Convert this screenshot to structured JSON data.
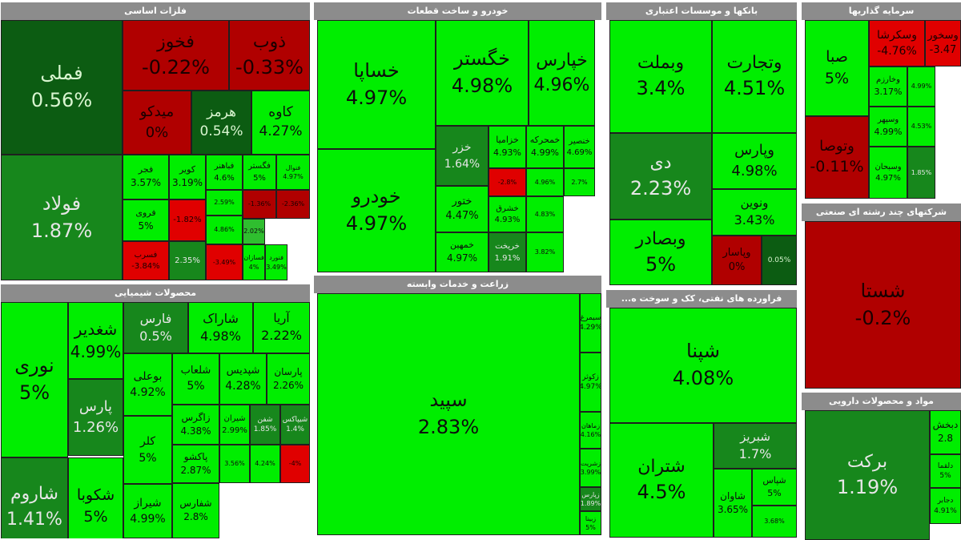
{
  "colors": {
    "header_bg": "#8c8c8c",
    "header_text": "#ffffff",
    "positive_strong": "#00ee00",
    "positive_mid": "#2fbe2f",
    "positive_dark": "#17871c",
    "positive_darkest": "#0c5c12",
    "negative": "#b00000",
    "negative_bright": "#e00000",
    "border": "#1f1f1f"
  },
  "chart_data": {
    "type": "treemap",
    "sectors": [
      {
        "name": "فلزات اساسی",
        "tiles": [
          {
            "name": "فملی",
            "change": "0.56%"
          },
          {
            "name": "فولاد",
            "change": "1.87%"
          },
          {
            "name": "فخوز",
            "change": "-0.22%"
          },
          {
            "name": "ذوب",
            "change": "-0.33%"
          },
          {
            "name": "میدکو",
            "change": "0%"
          },
          {
            "name": "هرمز",
            "change": "0.54%"
          },
          {
            "name": "کاوه",
            "change": "4.27%"
          },
          {
            "name": "فجر",
            "change": "3.57%"
          },
          {
            "name": "کویر",
            "change": "3.19%"
          },
          {
            "name": "فباهنر",
            "change": "4.6%"
          },
          {
            "name": "فگستر",
            "change": "5%"
          },
          {
            "name": "فنوال",
            "change": "4.97%"
          },
          {
            "name": "فروی",
            "change": "5%"
          },
          {
            "name": "-1.82%"
          },
          {
            "name": "فسرب",
            "change": "-3.84%"
          },
          {
            "name": "-1.36%"
          },
          {
            "name": "-2.36%"
          },
          {
            "name": "2.59%"
          },
          {
            "name": "4.86%"
          },
          {
            "name": "2.02%"
          },
          {
            "name": "فسازان",
            "change": "4%"
          },
          {
            "name": "فنورد",
            "change": "3.49%"
          },
          {
            "name": "2.35%"
          },
          {
            "name": "-3.49%"
          }
        ]
      },
      {
        "name": "خودرو و ساخت قطعات",
        "tiles": [
          {
            "name": "خساپا",
            "change": "4.97%"
          },
          {
            "name": "خودرو",
            "change": "4.97%"
          },
          {
            "name": "خگستر",
            "change": "4.98%"
          },
          {
            "name": "خپارس",
            "change": "4.96%"
          },
          {
            "name": "خزر",
            "change": "1.64%"
          },
          {
            "name": "خزامیا",
            "change": "4.93%"
          },
          {
            "name": "خمحرکه",
            "change": "4.99%"
          },
          {
            "name": "خنصیر",
            "change": "4.69%"
          },
          {
            "name": "ختور",
            "change": "4.47%"
          },
          {
            "name": "-2.8%"
          },
          {
            "name": "4.96%"
          },
          {
            "name": "2.7%"
          },
          {
            "name": "خشرق",
            "change": "4.93%"
          },
          {
            "name": "4.83%"
          },
          {
            "name": "خمهین",
            "change": "4.97%"
          },
          {
            "name": "خریخت",
            "change": "1.91%"
          },
          {
            "name": "3.82%"
          }
        ]
      },
      {
        "name": "بانکها و موسسات اعتباری",
        "tiles": [
          {
            "name": "وبملت",
            "change": "3.4%"
          },
          {
            "name": "وتجارت",
            "change": "4.51%"
          },
          {
            "name": "دی",
            "change": "2.23%"
          },
          {
            "name": "وپارس",
            "change": "4.98%"
          },
          {
            "name": "ونوین",
            "change": "3.43%"
          },
          {
            "name": "وبصادر",
            "change": "5%"
          },
          {
            "name": "وپاسار",
            "change": "0%"
          },
          {
            "name": "0.05%"
          }
        ]
      },
      {
        "name": "سرمایه گذاریها",
        "tiles": [
          {
            "name": "صبا",
            "change": "5%"
          },
          {
            "name": "وسکرشا",
            "change": "-4.76%"
          },
          {
            "name": "وسخور",
            "change": "-3.47"
          },
          {
            "name": "وخارزم",
            "change": "3.17%"
          },
          {
            "name": "4.99%"
          },
          {
            "name": "وتوصا",
            "change": "-0.11%"
          },
          {
            "name": "وسپهر",
            "change": "4.99%"
          },
          {
            "name": "4.53%"
          },
          {
            "name": "وسبحان",
            "change": "4.97%"
          },
          {
            "name": "1.85%"
          }
        ]
      },
      {
        "name": "محصولات شیمیایی",
        "tiles": [
          {
            "name": "نوری",
            "change": "5%"
          },
          {
            "name": "شغدیر",
            "change": "4.99%"
          },
          {
            "name": "پارس",
            "change": "1.26%"
          },
          {
            "name": "شاروم",
            "change": "1.41%"
          },
          {
            "name": "شکوبا",
            "change": "5%"
          },
          {
            "name": "فارس",
            "change": "0.5%"
          },
          {
            "name": "شاراک",
            "change": "4.98%"
          },
          {
            "name": "آریا",
            "change": "2.22%"
          },
          {
            "name": "بوعلی",
            "change": "4.92%"
          },
          {
            "name": "شلعاب",
            "change": "5%"
          },
          {
            "name": "شپدیس",
            "change": "4.28%"
          },
          {
            "name": "پارسان",
            "change": "2.26%"
          },
          {
            "name": "کلر",
            "change": "5%"
          },
          {
            "name": "زاگرس",
            "change": "4.38%"
          },
          {
            "name": "شیران",
            "change": "2.99%"
          },
          {
            "name": "شفن",
            "change": "1.85%"
          },
          {
            "name": "شیپاکس",
            "change": "1.4%"
          },
          {
            "name": "پاکشو",
            "change": "2.87%"
          },
          {
            "name": "شیراز",
            "change": "4.99%"
          },
          {
            "name": "شفارس",
            "change": "2.8%"
          },
          {
            "name": "3.56%"
          },
          {
            "name": "4.24%"
          },
          {
            "name": "-4%"
          }
        ]
      },
      {
        "name": "زراعت و خدمات وابسته",
        "tiles": [
          {
            "name": "سپید",
            "change": "2.83%"
          },
          {
            "name": "سیمرغ",
            "change": "4.29%"
          },
          {
            "name": "زکوثر",
            "change": "4.97%"
          },
          {
            "name": "زماهان",
            "change": "4.16%"
          },
          {
            "name": "زشریت",
            "change": "3.99%"
          },
          {
            "name": "زپارس",
            "change": "1.89%"
          },
          {
            "name": "زبینا",
            "change": "5%"
          }
        ]
      },
      {
        "name": "فراورده های نفتی، کک و سوخت ه...",
        "tiles": [
          {
            "name": "شپنا",
            "change": "4.08%"
          },
          {
            "name": "شتران",
            "change": "4.5%"
          },
          {
            "name": "شبریز",
            "change": "1.7%"
          },
          {
            "name": "شاوان",
            "change": "3.65%"
          },
          {
            "name": "شپاس",
            "change": "5%"
          },
          {
            "name": "3.68%"
          }
        ]
      },
      {
        "name": "شرکتهای چند رشته ای صنعتی",
        "tiles": [
          {
            "name": "شستا",
            "change": "-0.2%"
          }
        ]
      },
      {
        "name": "مواد و محصولات دارویی",
        "tiles": [
          {
            "name": "برکت",
            "change": "1.19%"
          },
          {
            "name": "دبخش",
            "change": "2.8"
          },
          {
            "name": "دلقما",
            "change": "5%"
          },
          {
            "name": "دجابر",
            "change": "4.91%"
          }
        ]
      }
    ]
  }
}
